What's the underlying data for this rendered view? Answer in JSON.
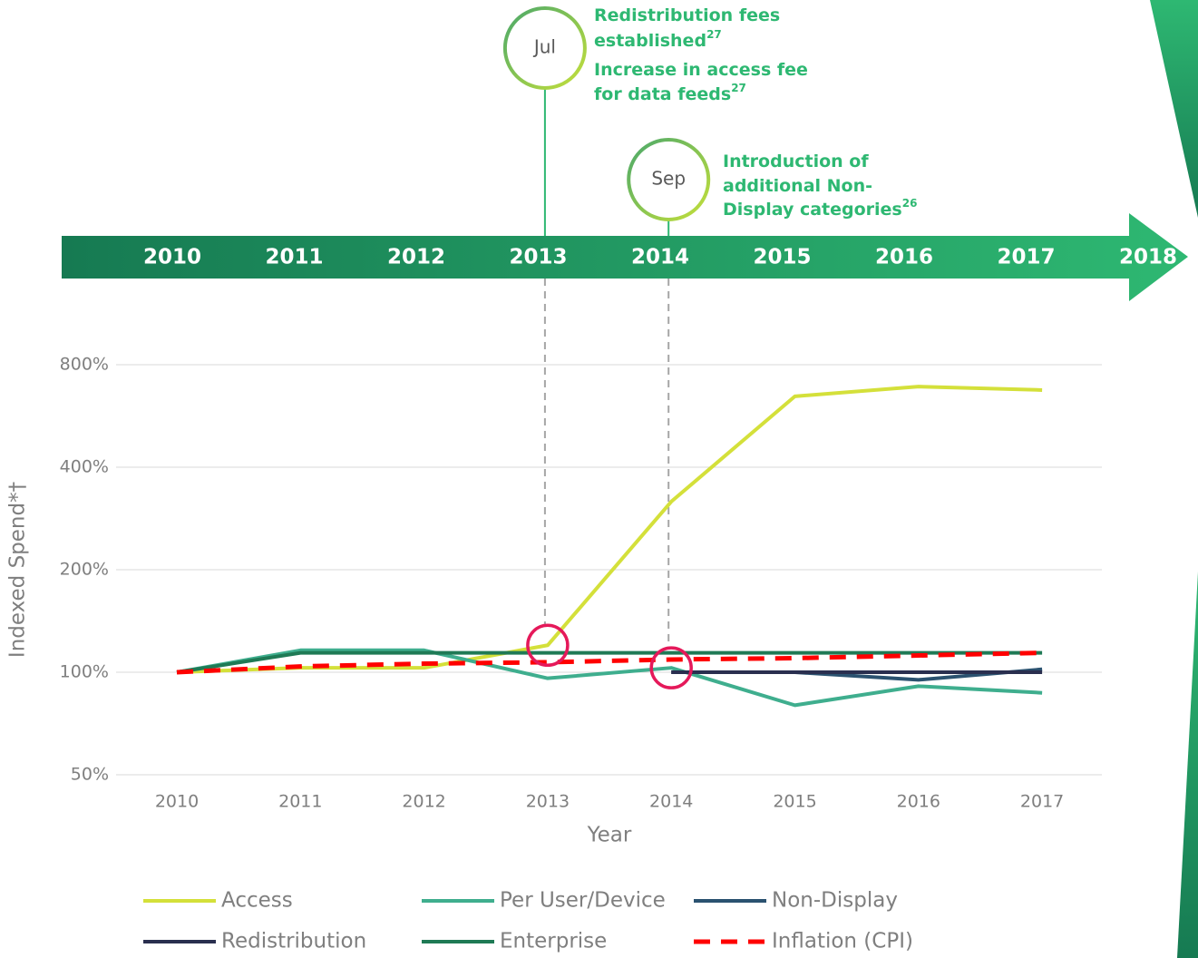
{
  "chart_data": {
    "type": "line",
    "ylabel": "Indexed Spend*†",
    "xlabel": "Year",
    "categories": [
      "2010",
      "2011",
      "2012",
      "2013",
      "2014",
      "2015",
      "2016",
      "2017"
    ],
    "log_scale": true,
    "grid": true,
    "ylim": [
      50,
      800
    ],
    "yticks": [
      {
        "value": 50,
        "label": "50%"
      },
      {
        "value": 100,
        "label": "100%"
      },
      {
        "value": 200,
        "label": "200%"
      },
      {
        "value": 400,
        "label": "400%"
      },
      {
        "value": 800,
        "label": "800%"
      }
    ],
    "series": [
      {
        "name": "Access",
        "color": "#d4e03a",
        "values": [
          100,
          103,
          103,
          120,
          317,
          646,
          690,
          674
        ]
      },
      {
        "name": "Per User/Device",
        "color": "#3fae8e",
        "values": [
          100,
          116,
          116,
          96,
          103,
          80,
          91,
          87
        ]
      },
      {
        "name": "Non-Display",
        "color": "#2b5270",
        "values": [
          null,
          null,
          null,
          null,
          100,
          100,
          95,
          102
        ]
      },
      {
        "name": "Redistribution",
        "color": "#2a2f4f",
        "values": [
          null,
          null,
          null,
          null,
          100,
          100,
          100,
          100
        ]
      },
      {
        "name": "Enterprise",
        "color": "#1f7a55",
        "values": [
          100,
          114,
          114,
          114,
          114,
          114,
          114,
          114
        ]
      },
      {
        "name": "Inflation (CPI)",
        "color": "#ff0000",
        "dashed": true,
        "values": [
          100,
          104,
          106,
          107,
          109,
          110,
          112,
          114
        ]
      }
    ]
  },
  "timeline": {
    "years": [
      "2010",
      "2011",
      "2012",
      "2013",
      "2014",
      "2015",
      "2016",
      "2017",
      "2018"
    ],
    "events": [
      {
        "x": "2013",
        "month": "Jul",
        "lines": [
          {
            "text": "Redistribution fees"
          },
          {
            "text": "established",
            "ref": "27"
          },
          {
            "text": "Increase in access fee"
          },
          {
            "text": "for data feeds",
            "ref": "27"
          }
        ]
      },
      {
        "x": "2014",
        "month": "Sep",
        "lines": [
          {
            "text": "Introduction of"
          },
          {
            "text": "additional Non-"
          },
          {
            "text": "Display categories",
            "ref": "26"
          }
        ]
      }
    ]
  }
}
